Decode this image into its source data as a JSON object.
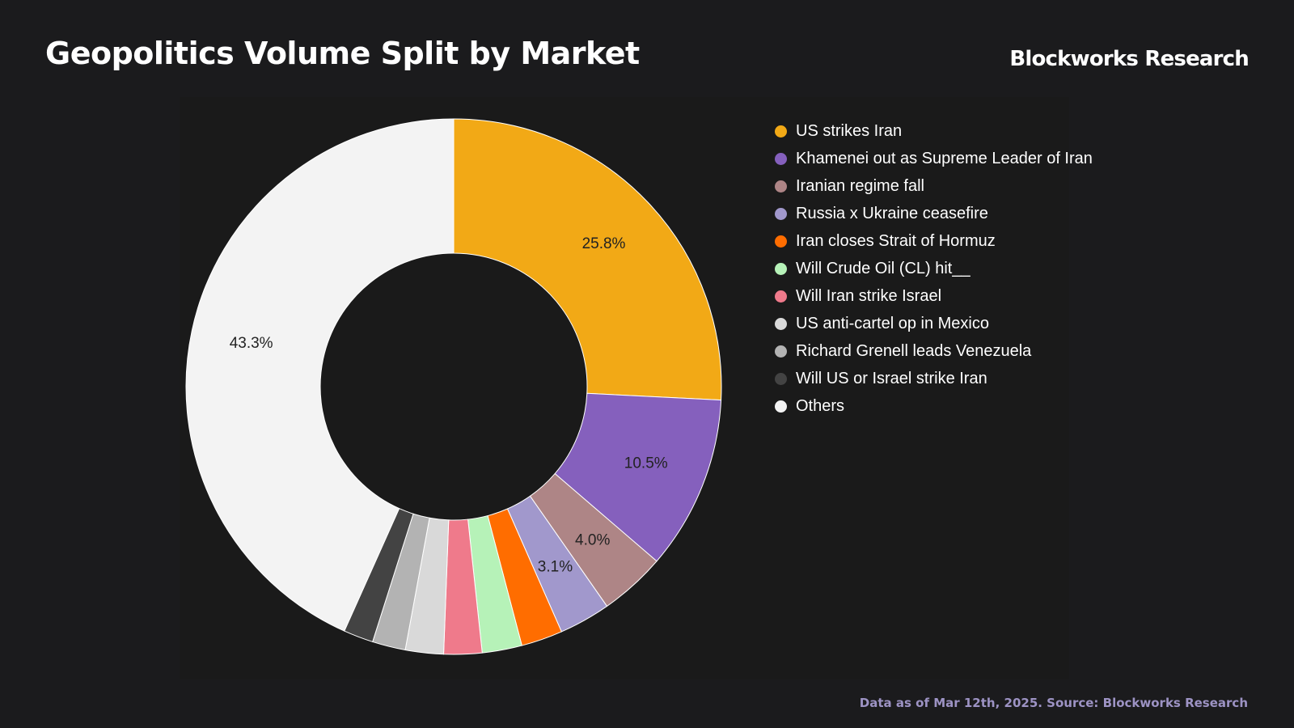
{
  "header": {
    "title": "Geopolitics Volume Split by Market",
    "brand": "Blockworks Research"
  },
  "footer": {
    "source": "Data as of Mar 12th, 2025. Source: Blockworks Research"
  },
  "chart_data": {
    "type": "pie",
    "variant": "donut",
    "title": "Geopolitics Volume Split by Market",
    "legend_position": "right",
    "categories": [
      "US strikes Iran",
      "Khamenei out as Supreme Leader of Iran",
      "Iranian regime fall",
      "Russia x Ukraine ceasefire",
      "Iran closes Strait of Hormuz",
      "Will Crude Oil (CL) hit__",
      "Will Iran strike Israel",
      "US anti-cartel op in Mexico",
      "Richard Grenell leads Venezuela",
      "Will US or Israel strike Iran",
      "Others"
    ],
    "values": [
      25.8,
      10.5,
      4.0,
      3.1,
      2.5,
      2.4,
      2.3,
      2.3,
      2.0,
      1.8,
      43.3
    ],
    "labels": [
      "25.8%",
      "10.5%",
      "4.0%",
      "3.1%",
      "",
      "",
      "",
      "",
      "",
      "",
      "43.3%"
    ],
    "colors": [
      "#f2a916",
      "#8560bd",
      "#ae8586",
      "#a198cc",
      "#ff6d00",
      "#b6f2b8",
      "#ef7a8b",
      "#d9d9d9",
      "#b3b3b3",
      "#434343",
      "#f3f3f3"
    ]
  }
}
